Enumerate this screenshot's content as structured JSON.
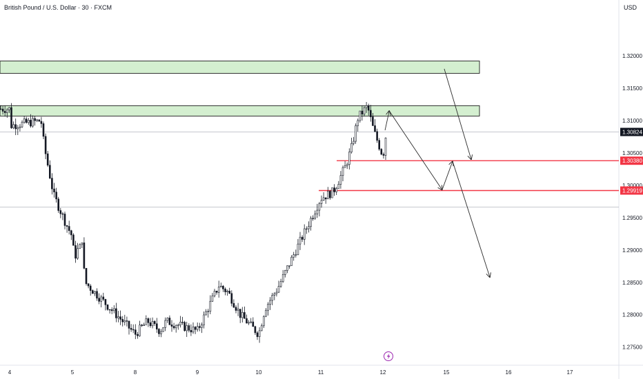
{
  "header": {
    "symbol_title": "British Pound / U.S. Dollar · 30 · FXCM",
    "currency": "USD"
  },
  "colors": {
    "candle": "#131722",
    "zone_fill": "#d4efd0",
    "zone_border": "#1b1b1b",
    "support_line": "#f23645",
    "current_badge": "#131722",
    "level_badge": "#f23645",
    "arrow": "#2a2a2a"
  },
  "chart_data": {
    "type": "candlestick",
    "y_axis": {
      "range": [
        1.2722,
        1.3265
      ],
      "tick_labels": [
        "1.32000",
        "1.31500",
        "1.31000",
        "1.30500",
        "1.30000",
        "1.29500",
        "1.29000",
        "1.28500",
        "1.28000",
        "1.27500"
      ],
      "tick_values": [
        1.32,
        1.315,
        1.31,
        1.305,
        1.3,
        1.295,
        1.29,
        1.285,
        1.28,
        1.275
      ]
    },
    "x_axis": {
      "tick_labels": [
        "4",
        "5",
        "8",
        "9",
        "10",
        "11",
        "12",
        "15",
        "16",
        "17"
      ]
    },
    "current_price": {
      "label": "1.30824",
      "value": 1.30824
    },
    "horizontal_levels": [
      {
        "label": "1.30380",
        "value": 1.3038,
        "color": "#f23645"
      },
      {
        "label": "1.29919",
        "value": 1.29919,
        "color": "#f23645"
      }
    ],
    "gray_levels": [
      1.30824,
      1.29665
    ],
    "supply_zones": [
      {
        "from": 1.3173,
        "to": 1.3192
      },
      {
        "from": 1.3107,
        "to": 1.3123
      }
    ],
    "price_path": [
      [
        "4",
        1.3118
      ],
      [
        "4",
        1.3095
      ],
      [
        "4",
        1.3092
      ],
      [
        "4.5",
        1.31
      ],
      [
        "4.55",
        1.306
      ],
      [
        "4.7",
        1.2985
      ],
      [
        "4.9",
        1.294
      ],
      [
        "5",
        1.292
      ],
      [
        "5.1",
        1.288
      ],
      [
        "5.2",
        1.2905
      ],
      [
        "5.3",
        1.2895
      ],
      [
        "5.45",
        1.292
      ],
      [
        "5.5",
        1.289
      ],
      [
        "5.6",
        1.285
      ],
      [
        "8",
        1.277
      ],
      [
        "8.2",
        1.279
      ],
      [
        "8.4",
        1.2775
      ],
      [
        "8.5",
        1.279
      ],
      [
        "9",
        1.2775
      ],
      [
        "9.2",
        1.2815
      ],
      [
        "9.35",
        1.2845
      ],
      [
        "9.5",
        1.2835
      ],
      [
        "9.7",
        1.28
      ],
      [
        "10",
        1.277
      ],
      [
        "10.1",
        1.281
      ],
      [
        "10.3",
        1.284
      ],
      [
        "10.5",
        1.288
      ],
      [
        "10.7",
        1.292
      ],
      [
        "11",
        1.298
      ],
      [
        "11.2",
        1.299
      ],
      [
        "11.4",
        1.303
      ],
      [
        "11.5",
        1.306
      ],
      [
        "11.6",
        1.3105
      ],
      [
        "11.75",
        1.3122
      ],
      [
        "11.85",
        1.3085
      ],
      [
        "12",
        1.3045
      ],
      [
        "12.1",
        1.3065
      ],
      [
        "12.15",
        1.3082
      ]
    ],
    "projection_arrows": [
      {
        "from": [
          "12.1",
          1.3085
        ],
        "to": [
          "12.3",
          1.3115
        ]
      },
      {
        "from": [
          "12.3",
          1.3115
        ],
        "to": [
          "14.8",
          1.2993
        ]
      },
      {
        "from": [
          "14.8",
          1.2993
        ],
        "to": [
          "15.1",
          1.3037
        ]
      },
      {
        "from": [
          "15.1",
          1.3037
        ],
        "to": [
          "15.7",
          1.2858
        ]
      },
      {
        "from": [
          "14.9",
          1.318
        ],
        "to": [
          "15.4",
          1.304
        ]
      }
    ]
  },
  "icons": {
    "lightning_badge": "lightning-icon"
  }
}
